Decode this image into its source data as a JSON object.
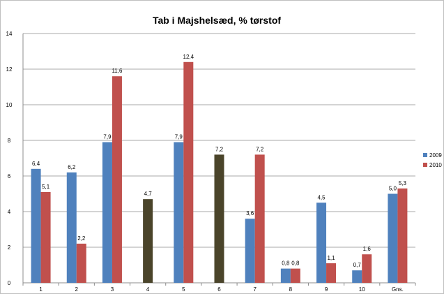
{
  "chart_data": {
    "type": "bar",
    "title": "Tab i Majshelsæd, % tørstof",
    "xlabel": "",
    "ylabel": "",
    "categories": [
      "1",
      "2",
      "3",
      "4",
      "5",
      "6",
      "7",
      "8",
      "9",
      "10",
      "Gns."
    ],
    "ylim": [
      0,
      14
    ],
    "yticks": [
      "0",
      "2",
      "4",
      "6",
      "8",
      "10",
      "12",
      "14"
    ],
    "grid": true,
    "legend_position": "right",
    "series": [
      {
        "name": "2009",
        "color": "#4f81bd",
        "values": [
          6.4,
          6.2,
          7.9,
          null,
          7.9,
          null,
          3.6,
          0.8,
          4.5,
          0.7,
          5.0
        ],
        "labels": [
          "6,4",
          "6,2",
          "7,9",
          "",
          "7,9",
          "",
          "3,6",
          "0,8",
          "4,5",
          "0,7",
          "5,0"
        ]
      },
      {
        "name": "2010",
        "color": "#c0504d",
        "values": [
          5.1,
          2.2,
          11.6,
          null,
          12.4,
          null,
          7.2,
          0.8,
          1.1,
          1.6,
          5.3
        ],
        "labels": [
          "5,1",
          "2,2",
          "11,6",
          "",
          "12,4",
          "",
          "7,2",
          "0,8",
          "1,1",
          "1,6",
          "5,3"
        ]
      }
    ],
    "single_bars": [
      {
        "category": "4",
        "value": 4.7,
        "label": "4,7",
        "color": "#4a442a"
      },
      {
        "category": "6",
        "value": 7.2,
        "label": "7,2",
        "color": "#4a442a"
      }
    ]
  }
}
